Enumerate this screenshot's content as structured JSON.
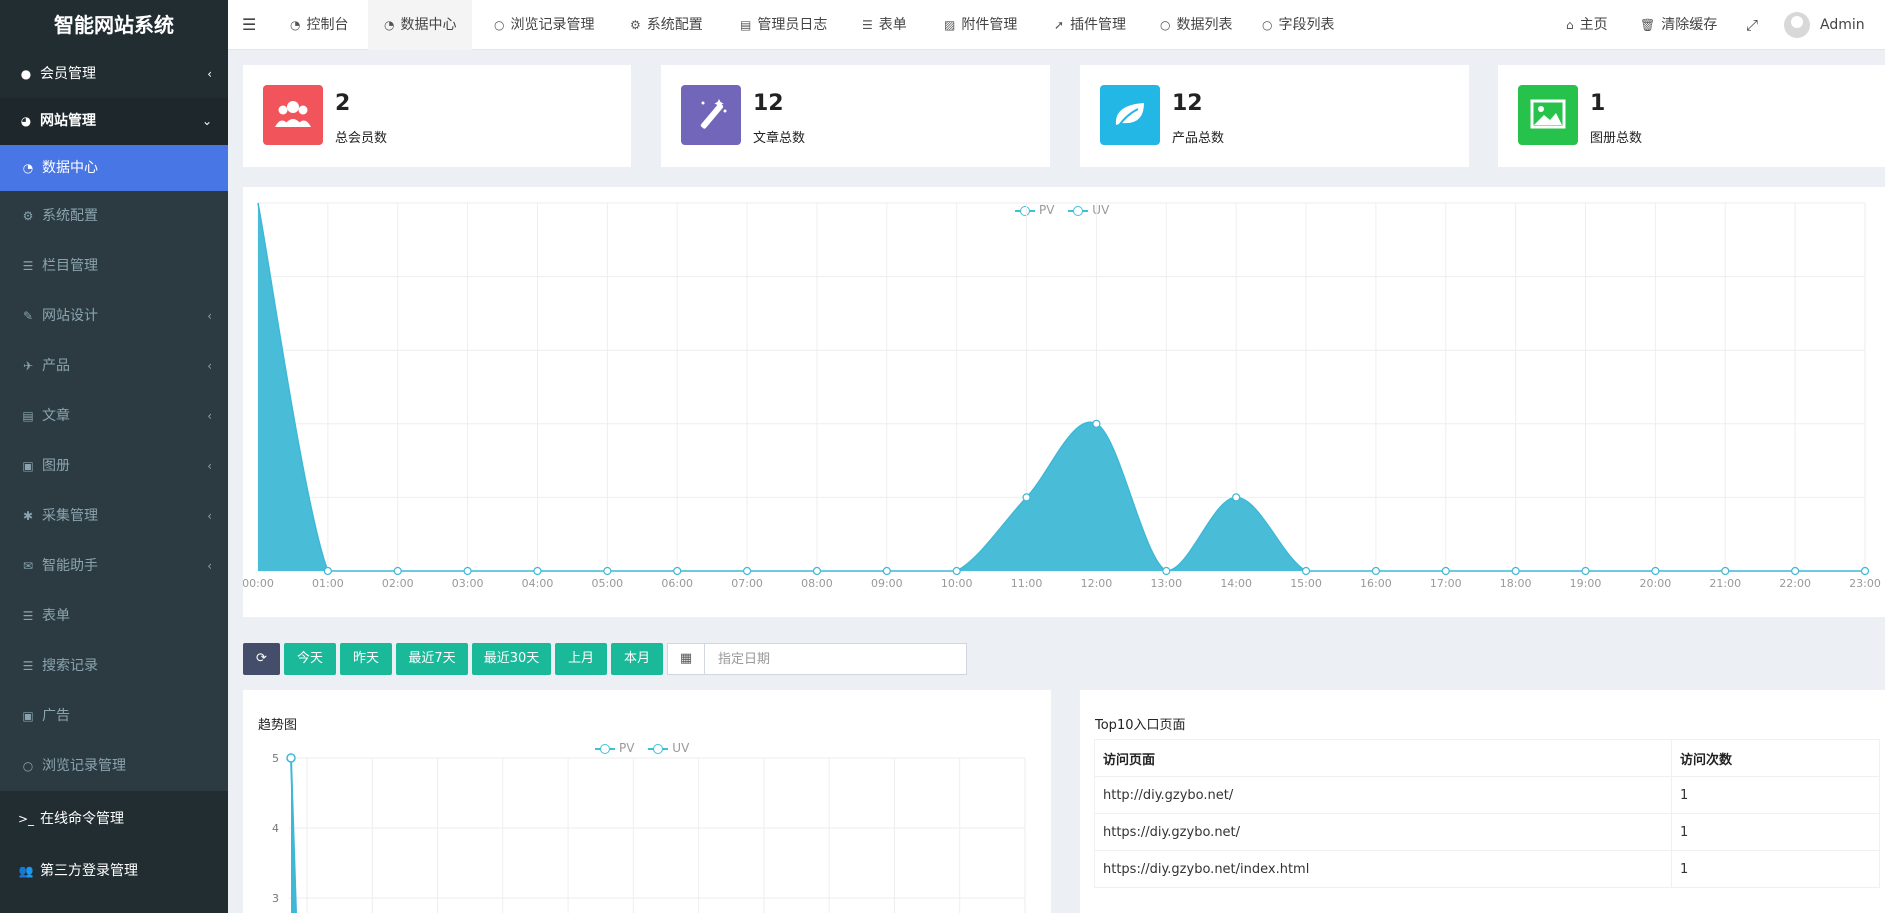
{
  "app": {
    "title": "智能网站系统"
  },
  "sidebar": {
    "items": [
      {
        "label": "会员管理",
        "icon": "user-circle-icon",
        "chevron": "‹"
      },
      {
        "label": "网站管理",
        "icon": "globe-icon",
        "chevron": "⌄"
      }
    ],
    "subitems": [
      {
        "label": "数据中心",
        "icon": "dashboard-icon"
      },
      {
        "label": "系统配置",
        "icon": "cogs-icon"
      },
      {
        "label": "栏目管理",
        "icon": "list-icon"
      },
      {
        "label": "网站设计",
        "icon": "paint-brush-icon"
      },
      {
        "label": "产品",
        "icon": "plane-icon"
      },
      {
        "label": "文章",
        "icon": "newspaper-icon"
      },
      {
        "label": "图册",
        "icon": "image-icon"
      },
      {
        "label": "采集管理",
        "icon": "bug-icon"
      },
      {
        "label": "智能助手",
        "icon": "comments-icon"
      },
      {
        "label": "表单",
        "icon": "list-icon"
      },
      {
        "label": "搜索记录",
        "icon": "list-icon"
      },
      {
        "label": "广告",
        "icon": "image-icon"
      },
      {
        "label": "浏览记录管理",
        "icon": "circle-icon"
      }
    ],
    "bottom_items": [
      {
        "label": "在线命令管理",
        "icon": "terminal-icon"
      },
      {
        "label": "第三方登录管理",
        "icon": "users-icon"
      }
    ]
  },
  "topbar": {
    "tabs": [
      {
        "label": "控制台",
        "icon": "dashboard-icon"
      },
      {
        "label": "数据中心",
        "icon": "dashboard-icon"
      },
      {
        "label": "浏览记录管理",
        "icon": "circle-icon"
      },
      {
        "label": "系统配置",
        "icon": "cogs-icon"
      },
      {
        "label": "管理员日志",
        "icon": "table-icon"
      },
      {
        "label": "表单",
        "icon": "list-icon"
      },
      {
        "label": "附件管理",
        "icon": "file-image-icon"
      },
      {
        "label": "插件管理",
        "icon": "rocket-icon"
      },
      {
        "label": "数据列表",
        "icon": "circle-icon"
      },
      {
        "label": "字段列表",
        "icon": "circle-icon"
      }
    ],
    "home_label": "主页",
    "clear_cache_label": "清除缓存",
    "user_name": "Admin"
  },
  "stats": [
    {
      "value": "2",
      "label": "总会员数",
      "color": "#f2545b",
      "icon": "users-icon"
    },
    {
      "value": "12",
      "label": "文章总数",
      "color": "#7266ba",
      "icon": "magic-icon"
    },
    {
      "value": "12",
      "label": "产品总数",
      "color": "#23b7e5",
      "icon": "leaf-icon"
    },
    {
      "value": "1",
      "label": "图册总数",
      "color": "#27c24c",
      "icon": "picture-icon"
    }
  ],
  "chart_data": [
    {
      "type": "area",
      "x": [
        "00:00",
        "01:00",
        "02:00",
        "03:00",
        "04:00",
        "05:00",
        "06:00",
        "07:00",
        "08:00",
        "09:00",
        "10:00",
        "11:00",
        "12:00",
        "13:00",
        "14:00",
        "15:00",
        "16:00",
        "17:00",
        "18:00",
        "19:00",
        "20:00",
        "21:00",
        "22:00",
        "23:00"
      ],
      "series": [
        {
          "name": "PV",
          "values": [
            5,
            0,
            0,
            0,
            0,
            0,
            0,
            0,
            0,
            0,
            0,
            1,
            2,
            0,
            1,
            0,
            0,
            0,
            0,
            0,
            0,
            0,
            0,
            0
          ]
        },
        {
          "name": "UV",
          "values": [
            5,
            0,
            0,
            0,
            0,
            0,
            0,
            0,
            0,
            0,
            0,
            1,
            2,
            0,
            1,
            0,
            0,
            0,
            0,
            0,
            0,
            0,
            0,
            0
          ]
        }
      ],
      "ylim": [
        0,
        5
      ],
      "grid": true,
      "legend": "top-center",
      "color": "#3fb8d6"
    },
    {
      "type": "line",
      "title": "趋势图",
      "series": [
        {
          "name": "PV",
          "values": [
            5
          ]
        },
        {
          "name": "UV",
          "values": [
            5
          ]
        }
      ],
      "y_ticks": [
        "5",
        "4",
        "3"
      ],
      "grid": true,
      "legend": "top-center"
    }
  ],
  "filters": {
    "refresh_icon": "refresh-icon",
    "buttons": [
      "今天",
      "昨天",
      "最近7天",
      "最近30天",
      "上月",
      "本月"
    ],
    "date_placeholder": "指定日期",
    "calendar_icon": "calendar-icon"
  },
  "trend": {
    "title": "趋势图"
  },
  "top10": {
    "title": "Top10入口页面",
    "columns": [
      "访问页面",
      "访问次数"
    ],
    "rows": [
      [
        "http://diy.gzybo.net/",
        "1"
      ],
      [
        "https://diy.gzybo.net/",
        "1"
      ],
      [
        "https://diy.gzybo.net/index.html",
        "1"
      ]
    ]
  }
}
